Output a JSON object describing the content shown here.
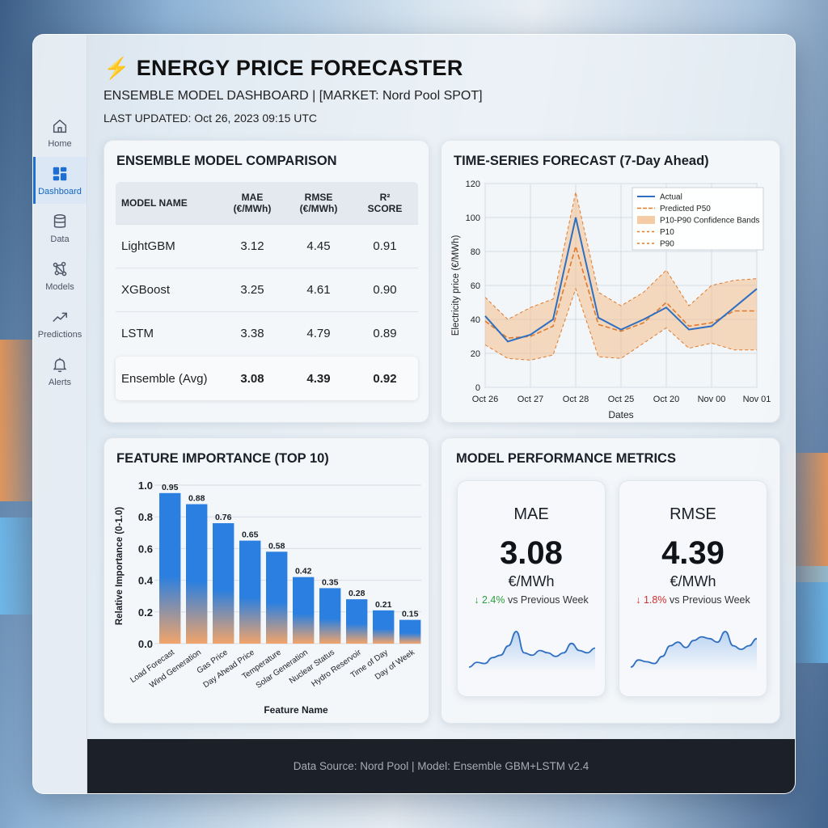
{
  "app": {
    "title": "ENERGY PRICE FORECASTER",
    "subtitle": "ENSEMBLE MODEL DASHBOARD | [MARKET: Nord Pool SPOT]",
    "last_updated": "LAST UPDATED: Oct 26, 2023 09:15 UTC"
  },
  "sidebar": {
    "items": [
      {
        "label": "Home",
        "icon": "home-icon"
      },
      {
        "label": "Dashboard",
        "icon": "dashboard-icon",
        "active": true
      },
      {
        "label": "Data",
        "icon": "database-icon"
      },
      {
        "label": "Models",
        "icon": "models-icon"
      },
      {
        "label": "Predictions",
        "icon": "trend-up-icon"
      },
      {
        "label": "Alerts",
        "icon": "bell-icon"
      }
    ]
  },
  "comparison": {
    "title": "ENSEMBLE MODEL COMPARISON",
    "headers": {
      "model": "MODEL NAME",
      "mae_1": "MAE",
      "mae_2": "(€/MWh)",
      "rmse_1": "RMSE",
      "rmse_2": "(€/MWh)",
      "r2_1": "R²",
      "r2_2": "SCORE"
    },
    "rows": [
      {
        "model": "LightGBM",
        "mae": "3.12",
        "rmse": "4.45",
        "r2": "0.91"
      },
      {
        "model": "XGBoost",
        "mae": "3.25",
        "rmse": "4.61",
        "r2": "0.90"
      },
      {
        "model": "LSTM",
        "mae": "3.38",
        "rmse": "4.79",
        "r2": "0.89"
      },
      {
        "model": "Ensemble (Avg)",
        "mae": "3.08",
        "rmse": "4.39",
        "r2": "0.92"
      }
    ]
  },
  "forecast": {
    "title": "TIME-SERIES FORECAST (7-Day Ahead)",
    "chart_data": {
      "type": "line",
      "xlabel": "Dates",
      "ylabel": "Electricity price (€/MWh)",
      "ylim": [
        0,
        120
      ],
      "yticks": [
        "0",
        "20",
        "40",
        "60",
        "80",
        "100",
        "120"
      ],
      "xticks": [
        "Oct 26",
        "Oct 27",
        "Oct 28",
        "Oct 25",
        "Oct 20",
        "Nov 00",
        "Nov 01"
      ],
      "legend_position": "top-right",
      "grid": true,
      "colors": {
        "actual": "#2f6fc1",
        "p50": "#e07b2e",
        "band": "#f3c08e"
      },
      "series": [
        {
          "name": "Actual",
          "values": [
            42,
            27,
            31,
            40,
            100,
            41,
            34,
            40,
            47,
            34,
            36,
            47,
            58
          ]
        },
        {
          "name": "Predicted P50",
          "values": [
            39,
            29,
            30,
            36,
            83,
            37,
            33,
            38,
            50,
            36,
            38,
            45,
            45
          ]
        },
        {
          "name": "P10-P90 Confidence Bands",
          "values": []
        },
        {
          "name": "P10",
          "values": [
            25,
            17,
            16,
            19,
            58,
            18,
            17,
            26,
            35,
            23,
            26,
            22,
            22
          ]
        },
        {
          "name": "P90",
          "values": [
            53,
            40,
            47,
            52,
            115,
            56,
            48,
            56,
            69,
            48,
            60,
            63,
            64
          ]
        }
      ]
    }
  },
  "importance": {
    "title": "FEATURE IMPORTANCE (TOP 10)",
    "chart_data": {
      "type": "bar",
      "xlabel": "Feature Name",
      "ylabel": "Relative Importance (0-1.0)",
      "ylim": [
        0,
        1.0
      ],
      "yticks": [
        "0.0",
        "0.2",
        "0.4",
        "0.6",
        "0.8",
        "1.0"
      ],
      "categories": [
        "Load Forecast",
        "Wind Generation",
        "Gas Price",
        "Day Ahead Price",
        "Temperature",
        "Solar Generation",
        "Nuclear Status",
        "Hydro Reservoir",
        "Time of Day",
        "Day of Week"
      ],
      "values": [
        0.95,
        0.88,
        0.76,
        0.65,
        0.58,
        0.42,
        0.35,
        0.28,
        0.21,
        0.15
      ],
      "labels": [
        "0.95",
        "0.88",
        "0.76",
        "0.65",
        "0.58",
        "0.42",
        "0.35",
        "0.28",
        "0.21",
        "0.15"
      ],
      "colors": {
        "top": "#2a7fe0",
        "bottom": "#f2a46a"
      }
    }
  },
  "metrics": {
    "title": "MODEL PERFORMANCE METRICS",
    "cards": [
      {
        "label": "MAE",
        "value": "3.08",
        "unit": "€/MWh",
        "arrow": "↓",
        "delta": "2.4%",
        "delta_text": "vs Previous Week",
        "delta_color": "#2e9e3e",
        "spark": [
          10,
          14,
          13,
          18,
          20,
          28,
          40,
          22,
          20,
          24,
          22,
          19,
          22,
          30,
          24,
          22,
          26
        ]
      },
      {
        "label": "RMSE",
        "value": "4.39",
        "unit": "€/MWh",
        "arrow": "↓",
        "delta": "1.8%",
        "delta_text": "vs Previous Week",
        "delta_color": "#d32f2f",
        "spark": [
          10,
          14,
          13,
          12,
          16,
          22,
          24,
          21,
          25,
          27,
          26,
          24,
          30,
          22,
          20,
          22,
          26
        ]
      }
    ]
  },
  "footer": {
    "text": "Data Source: Nord Pool | Model: Ensemble GBM+LSTM v2.4"
  }
}
